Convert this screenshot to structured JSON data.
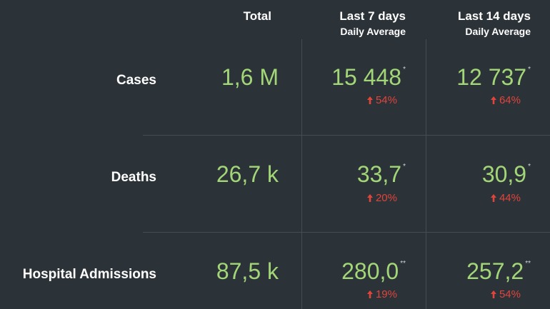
{
  "headers": {
    "total": "Total",
    "last7": "Last 7 days",
    "last7_sub": "Daily Average",
    "last14": "Last 14 days",
    "last14_sub": "Daily Average"
  },
  "rows": [
    {
      "label": "Cases",
      "total": "1,6 M",
      "last7": {
        "value": "15 448",
        "mark": "*",
        "trend": "54%"
      },
      "last14": {
        "value": "12 737",
        "mark": "*",
        "trend": "64%"
      }
    },
    {
      "label": "Deaths",
      "total": "26,7 k",
      "last7": {
        "value": "33,7",
        "mark": "*",
        "trend": "20%"
      },
      "last14": {
        "value": "30,9",
        "mark": "*",
        "trend": "44%"
      }
    },
    {
      "label": "Hospital Admissions",
      "total": "87,5 k",
      "last7": {
        "value": "280,0",
        "mark": "**",
        "trend": "19%"
      },
      "last14": {
        "value": "257,2",
        "mark": "**",
        "trend": "54%"
      }
    }
  ],
  "icons": {
    "trend_up": "arrow-up-icon"
  },
  "colors": {
    "background": "#2b3238",
    "value": "#a3d677",
    "trend_up": "#e0453c",
    "label": "#ffffff"
  }
}
